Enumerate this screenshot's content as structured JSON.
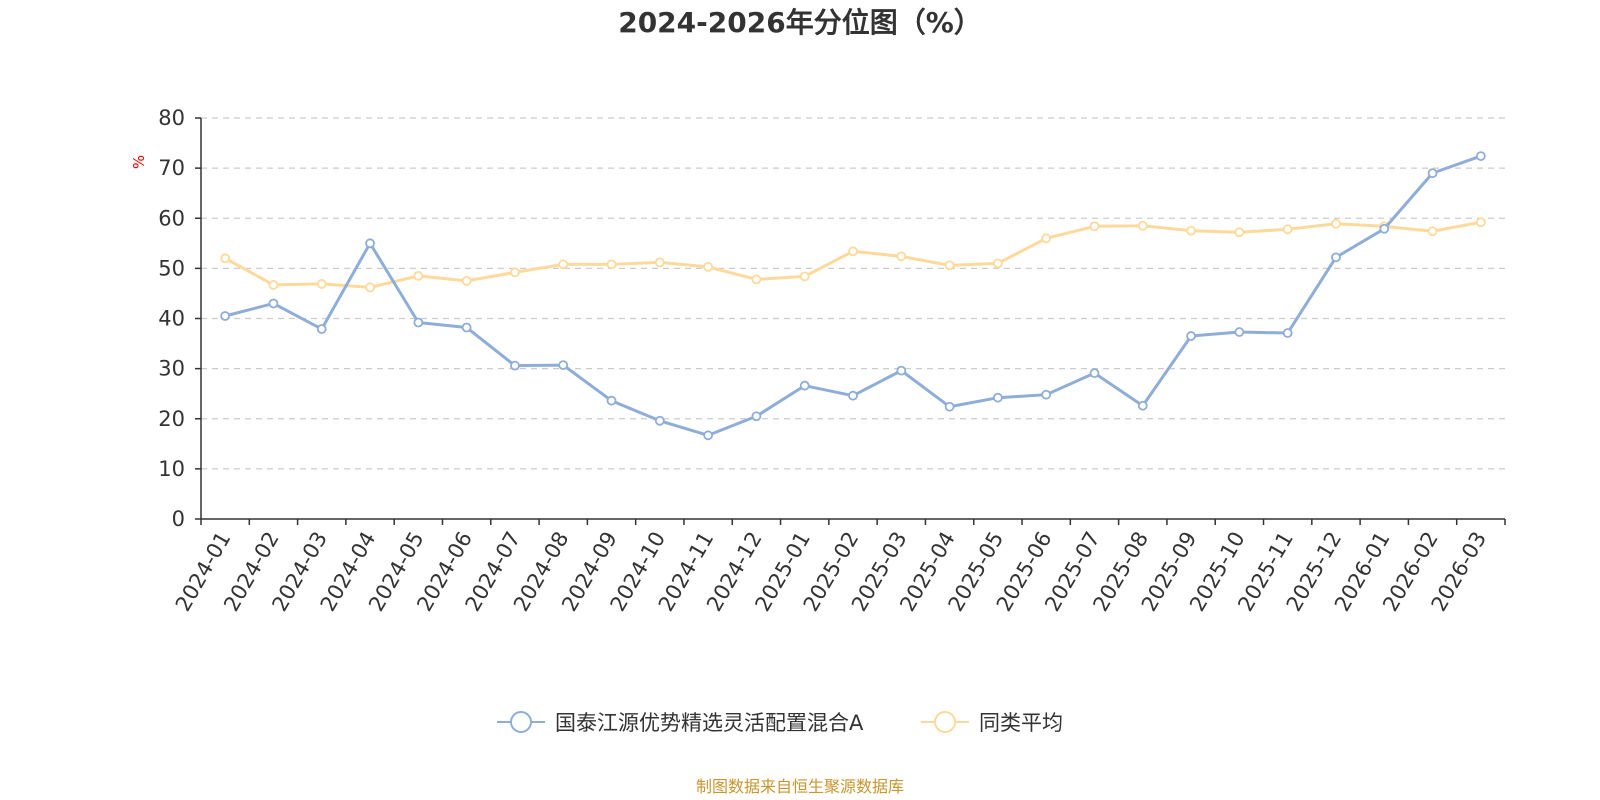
{
  "chart_data": {
    "type": "line",
    "title": "2024-2026年分位图（%）",
    "ylabel": "%",
    "xlabel": "",
    "ylim": [
      0,
      80
    ],
    "yticks": [
      0,
      10,
      20,
      30,
      40,
      50,
      60,
      70,
      80
    ],
    "grid": true,
    "legend_position": "bottom-center",
    "categories": [
      "2024-01",
      "2024-02",
      "2024-03",
      "2024-04",
      "2024-05",
      "2024-06",
      "2024-07",
      "2024-08",
      "2024-09",
      "2024-10",
      "2024-11",
      "2024-12",
      "2025-01",
      "2025-02",
      "2025-03",
      "2025-04",
      "2025-05",
      "2025-06",
      "2025-07",
      "2025-08",
      "2025-09",
      "2025-10",
      "2025-11",
      "2025-12",
      "2026-01",
      "2026-02",
      "2026-03"
    ],
    "series": [
      {
        "name": "国泰江源优势精选灵活配置混合A",
        "color": "#8eadd9",
        "values": [
          40.5,
          43.0,
          37.9,
          55.0,
          39.2,
          38.2,
          30.6,
          30.7,
          23.6,
          19.6,
          16.7,
          20.5,
          26.6,
          24.6,
          29.6,
          22.4,
          24.2,
          24.8,
          29.1,
          22.6,
          36.5,
          37.3,
          37.1,
          52.2,
          57.9,
          69.0,
          72.4
        ]
      },
      {
        "name": "同类平均",
        "color": "#fdd99b",
        "values": [
          52.0,
          46.7,
          46.9,
          46.2,
          48.5,
          47.5,
          49.2,
          50.8,
          50.8,
          51.2,
          50.3,
          47.8,
          48.4,
          53.4,
          52.4,
          50.6,
          51.0,
          56.0,
          58.4,
          58.5,
          57.5,
          57.2,
          57.8,
          58.9,
          58.4,
          57.4,
          59.2
        ]
      }
    ]
  },
  "footer": {
    "source_text": "制图数据来自恒生聚源数据库",
    "source_color": "#c8962e"
  },
  "unit_color": "#ff0000"
}
